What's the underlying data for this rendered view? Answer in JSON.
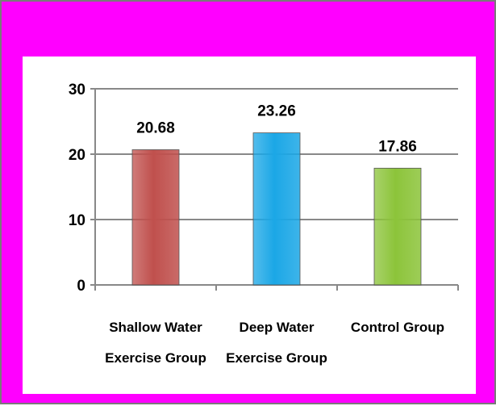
{
  "chart_data": {
    "type": "bar",
    "categories": [
      [
        "Shallow Water",
        "Exercise Group"
      ],
      [
        "Deep Water",
        "Exercise Group"
      ],
      [
        "Control Group"
      ]
    ],
    "values": [
      20.68,
      23.26,
      17.86
    ],
    "value_labels": [
      "20.68",
      "23.26",
      "17.86"
    ],
    "bar_colors": [
      "#c0504d",
      "#1ba7e6",
      "#8cc43a"
    ],
    "ylim": [
      0,
      30
    ],
    "yticks": [
      0,
      10,
      20,
      30
    ],
    "ytick_labels": [
      "0",
      "10",
      "20",
      "30"
    ],
    "grid": true,
    "title": "",
    "xlabel": "",
    "ylabel": ""
  },
  "colors": {
    "frame_background": "#ff00ff",
    "plot_background": "#ffffff",
    "gridline": "#888888"
  }
}
